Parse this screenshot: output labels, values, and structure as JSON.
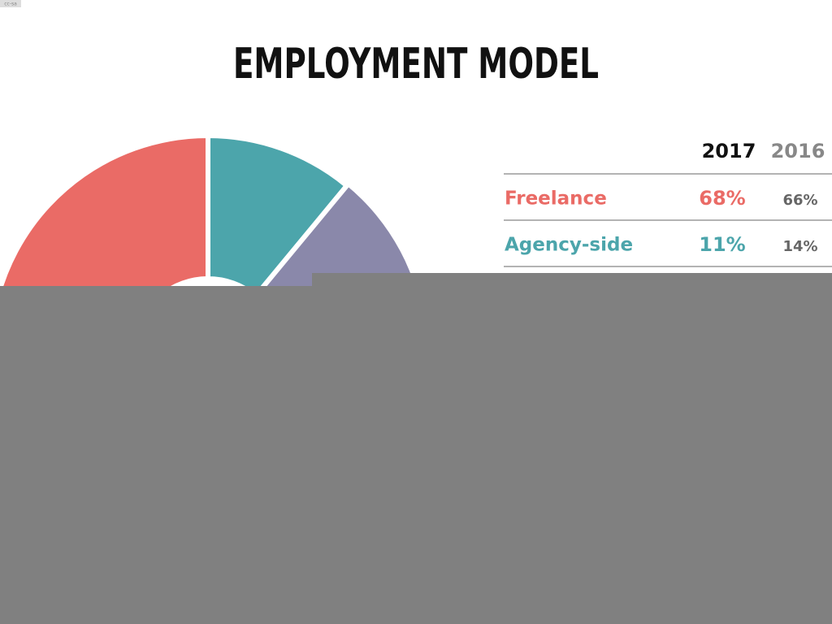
{
  "badge": "cc-sa",
  "title": "EMPLOYMENT MODEL",
  "table": {
    "columns": [
      "2017",
      "2016"
    ],
    "rows": [
      {
        "label": "Freelance",
        "color": "#ea6b66",
        "cells": [
          "68%",
          "66%"
        ]
      },
      {
        "label": "Agency-side",
        "color": "#4ca5ab",
        "cells": [
          "11%",
          "14%"
        ]
      }
    ]
  }
}
